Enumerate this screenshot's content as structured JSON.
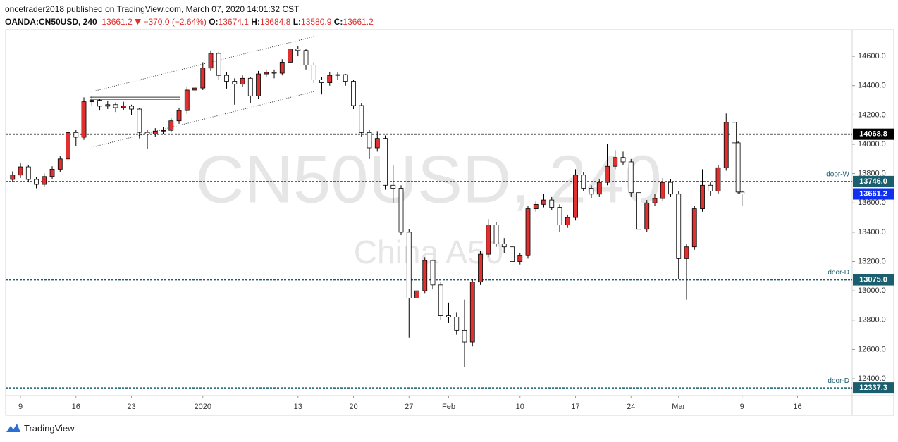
{
  "header": {
    "publisher": "oncetrader2018 published on TradingView.com, March 07, 2020 14:01:32 CST",
    "symbol": "OANDA:CN50USD, 240",
    "change": "−370.0 (−2.64%)",
    "o": "O:",
    "h": "H:",
    "l": "L:",
    "c": "C:"
  },
  "footer": {
    "brand": "TradingView"
  },
  "chart_data": {
    "type": "candlestick",
    "watermark": "CN50USD, 240",
    "watermark_sub": "China A50",
    "up_color": "#e0302f",
    "down_color": "#ffffff",
    "edge_color": "#000000",
    "xlim": [
      -1.87,
      104.89
    ],
    "ylim": [
      12285,
      14783
    ],
    "xticks": [
      {
        "value": 0,
        "label": "9"
      },
      {
        "value": 7,
        "label": "16"
      },
      {
        "value": 14,
        "label": "23"
      },
      {
        "value": 23,
        "label": "2020"
      },
      {
        "value": 35,
        "label": "13"
      },
      {
        "value": 42,
        "label": "20"
      },
      {
        "value": 49,
        "label": "27"
      },
      {
        "value": 54,
        "label": "Feb"
      },
      {
        "value": 63,
        "label": "10"
      },
      {
        "value": 70,
        "label": "17"
      },
      {
        "value": 77,
        "label": "24"
      },
      {
        "value": 83,
        "label": "Mar"
      },
      {
        "value": 91,
        "label": "9"
      },
      {
        "value": 98,
        "label": "16"
      }
    ],
    "yticks": [
      {
        "value": 12400,
        "label": "12400.0"
      },
      {
        "value": 12600,
        "label": "12600.0"
      },
      {
        "value": 12800,
        "label": "12800.0"
      },
      {
        "value": 13000,
        "label": "13000.0"
      },
      {
        "value": 13200,
        "label": "13200.0"
      },
      {
        "value": 13400,
        "label": "13400.0"
      },
      {
        "value": 13600,
        "label": "13600.0"
      },
      {
        "value": 13800,
        "label": "13800.0"
      },
      {
        "value": 14000,
        "label": "14000.0"
      },
      {
        "value": 14200,
        "label": "14200.0"
      },
      {
        "value": 14400,
        "label": "14400.0"
      },
      {
        "value": 14600,
        "label": "14600.0"
      }
    ],
    "x": [
      -1,
      0,
      1,
      2,
      3,
      4,
      5,
      6,
      7,
      8,
      9,
      10,
      11,
      12,
      13,
      14,
      15,
      16,
      17,
      18,
      19,
      20,
      21,
      22,
      23,
      24,
      25,
      26,
      27,
      28,
      29,
      30,
      31,
      32,
      33,
      34,
      35,
      36,
      37,
      38,
      39,
      40,
      41,
      42,
      43,
      44,
      45,
      46,
      47,
      48,
      49,
      50,
      51,
      52,
      53,
      54,
      55,
      56,
      57,
      58,
      59,
      60,
      61,
      62,
      63,
      64,
      65,
      66,
      67,
      68,
      69,
      70,
      71,
      72,
      73,
      74,
      75,
      76,
      77,
      78,
      79,
      80,
      81,
      82,
      83,
      84,
      85,
      86,
      87,
      88,
      89,
      90,
      90.5,
      91
    ],
    "ohlc": [
      [
        13760,
        13815,
        13740,
        13790
      ],
      [
        13790,
        13870,
        13770,
        13846
      ],
      [
        13846,
        13860,
        13740,
        13760
      ],
      [
        13760,
        13775,
        13700,
        13726
      ],
      [
        13726,
        13800,
        13710,
        13780
      ],
      [
        13780,
        13850,
        13765,
        13830
      ],
      [
        13830,
        13920,
        13810,
        13900
      ],
      [
        13900,
        14110,
        13880,
        14080
      ],
      [
        14080,
        14100,
        13990,
        14048
      ],
      [
        14048,
        14320,
        14030,
        14290
      ],
      [
        14290,
        14330,
        14260,
        14300
      ],
      [
        14300,
        14310,
        14230,
        14260
      ],
      [
        14260,
        14295,
        14240,
        14270
      ],
      [
        14270,
        14285,
        14220,
        14250
      ],
      [
        14250,
        14290,
        14235,
        14260
      ],
      [
        14260,
        14270,
        14200,
        14240
      ],
      [
        14240,
        14250,
        14040,
        14081
      ],
      [
        14081,
        14100,
        13970,
        14070
      ],
      [
        14070,
        14110,
        14050,
        14090
      ],
      [
        14090,
        14120,
        14070,
        14095
      ],
      [
        14095,
        14180,
        14080,
        14160
      ],
      [
        14160,
        14250,
        14140,
        14230
      ],
      [
        14230,
        14390,
        14210,
        14370
      ],
      [
        14370,
        14400,
        14350,
        14384
      ],
      [
        14384,
        14560,
        14370,
        14520
      ],
      [
        14520,
        14640,
        14500,
        14620
      ],
      [
        14620,
        14630,
        14440,
        14470
      ],
      [
        14470,
        14490,
        14380,
        14430
      ],
      [
        14430,
        14450,
        14270,
        14410
      ],
      [
        14410,
        14470,
        14390,
        14450
      ],
      [
        14450,
        14460,
        14280,
        14330
      ],
      [
        14330,
        14500,
        14310,
        14480
      ],
      [
        14480,
        14510,
        14460,
        14490
      ],
      [
        14490,
        14510,
        14450,
        14485
      ],
      [
        14485,
        14580,
        14470,
        14560
      ],
      [
        14560,
        14690,
        14540,
        14650
      ],
      [
        14650,
        14670,
        14600,
        14640
      ],
      [
        14640,
        14650,
        14510,
        14540
      ],
      [
        14540,
        14560,
        14420,
        14440
      ],
      [
        14440,
        14460,
        14340,
        14420
      ],
      [
        14420,
        14490,
        14400,
        14470
      ],
      [
        14470,
        14490,
        14440,
        14475
      ],
      [
        14475,
        14480,
        14400,
        14430
      ],
      [
        14430,
        14440,
        14240,
        14264
      ],
      [
        14264,
        14280,
        14050,
        14080
      ],
      [
        14080,
        14100,
        13900,
        13976
      ],
      [
        13976,
        14090,
        13950,
        14040
      ],
      [
        14040,
        14060,
        13690,
        13720
      ],
      [
        13720,
        13860,
        13600,
        13700
      ],
      [
        13700,
        13720,
        13380,
        13400
      ],
      [
        13400,
        13420,
        12680,
        12950
      ],
      [
        12950,
        13050,
        12900,
        13000
      ],
      [
        13000,
        13230,
        12980,
        13207
      ],
      [
        13207,
        13210,
        13010,
        13040
      ],
      [
        13040,
        13060,
        12800,
        12830
      ],
      [
        12830,
        12920,
        12780,
        12820
      ],
      [
        12820,
        12850,
        12700,
        12730
      ],
      [
        12730,
        12940,
        12480,
        12650
      ],
      [
        12650,
        13080,
        12620,
        13060
      ],
      [
        13060,
        13270,
        13040,
        13250
      ],
      [
        13250,
        13490,
        13230,
        13450
      ],
      [
        13450,
        13470,
        13300,
        13320
      ],
      [
        13320,
        13360,
        13260,
        13300
      ],
      [
        13300,
        13320,
        13160,
        13200
      ],
      [
        13200,
        13260,
        13180,
        13240
      ],
      [
        13240,
        13580,
        13220,
        13560
      ],
      [
        13560,
        13610,
        13540,
        13590
      ],
      [
        13590,
        13660,
        13570,
        13620
      ],
      [
        13620,
        13640,
        13550,
        13570
      ],
      [
        13570,
        13590,
        13400,
        13450
      ],
      [
        13450,
        13520,
        13430,
        13500
      ],
      [
        13500,
        13830,
        13480,
        13790
      ],
      [
        13790,
        13810,
        13680,
        13700
      ],
      [
        13700,
        13720,
        13630,
        13660
      ],
      [
        13660,
        13760,
        13640,
        13740
      ],
      [
        13740,
        14000,
        13720,
        13850
      ],
      [
        13850,
        13960,
        13830,
        13910
      ],
      [
        13910,
        13950,
        13860,
        13880
      ],
      [
        13880,
        13900,
        13640,
        13670
      ],
      [
        13670,
        13690,
        13350,
        13420
      ],
      [
        13420,
        13620,
        13400,
        13600
      ],
      [
        13600,
        13660,
        13580,
        13630
      ],
      [
        13630,
        13770,
        13610,
        13740
      ],
      [
        13740,
        13760,
        13640,
        13660
      ],
      [
        13660,
        13680,
        13080,
        13220
      ],
      [
        13220,
        13320,
        12940,
        13300
      ],
      [
        13300,
        13580,
        13280,
        13560
      ],
      [
        13560,
        13830,
        13540,
        13720
      ],
      [
        13720,
        13740,
        13650,
        13680
      ],
      [
        13680,
        13860,
        13660,
        13840
      ],
      [
        13840,
        14210,
        13820,
        14150
      ],
      [
        14150,
        14170,
        13980,
        14010
      ],
      [
        14010,
        14020,
        13660,
        13674.1
      ],
      [
        13674.1,
        13684.8,
        13580.9,
        13661.2
      ]
    ],
    "levels": [
      {
        "value": 14068.8,
        "label": "14068.8",
        "color": "#000000",
        "label_color": "#000000"
      },
      {
        "value": 13746.0,
        "label": "13746.0",
        "name": "door-W",
        "color": "#1b5e6e",
        "label_color": "#1b5e6e"
      },
      {
        "value": 13661.2,
        "label": "13661.2",
        "color": "#1030d0",
        "label_color": "#1030f0"
      },
      {
        "value": 13075.0,
        "label": "13075.0",
        "name": "door-D",
        "color": "#1b5e6e",
        "label_color": "#1b5e6e"
      },
      {
        "value": 12337.3,
        "label": "12337.3",
        "name": "door-D",
        "color": "#1b5e6e",
        "label_color": "#1b5e6e"
      }
    ],
    "trendlines": [
      {
        "x": [
          8.71,
          36.98
        ],
        "y": [
          14355,
          14734.5
        ]
      },
      {
        "x": [
          8.71,
          36.98
        ],
        "y": [
          13975.6,
          14359.8
        ]
      },
      {
        "x": [
          8.71,
          20.18
        ],
        "y": [
          14321,
          14321
        ]
      },
      {
        "x": [
          8.71,
          20.18
        ],
        "y": [
          14307,
          14307
        ]
      }
    ]
  }
}
